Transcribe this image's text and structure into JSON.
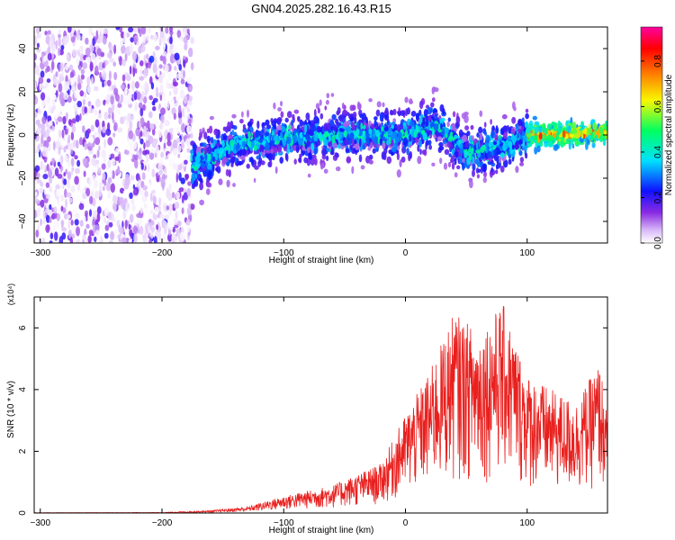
{
  "title": "GN04.2025.282.16.43.R15",
  "chart_data": [
    {
      "type": "heatmap",
      "title": "GN04.2025.282.16.43.R15",
      "xlabel": "Height of straight line (km)",
      "ylabel": "Frequency (Hz)",
      "xlim": [
        -305,
        166
      ],
      "ylim": [
        -50,
        50
      ],
      "x_ticks": [
        -300,
        -200,
        -100,
        0,
        100
      ],
      "y_ticks": [
        -40,
        -20,
        0,
        20,
        40
      ],
      "colorbar": {
        "label": "Normalized spectral amplitude",
        "range": [
          0,
          0.95
        ],
        "ticks": [
          0.0,
          0.2,
          0.4,
          0.6,
          0.8
        ],
        "colormap": [
          "#ffffff",
          "#d8b8f8",
          "#8a2be2",
          "#1010ff",
          "#00e0ff",
          "#00ff60",
          "#f8f800",
          "#ff8000",
          "#ff0000",
          "#ff00a0"
        ]
      },
      "regions": [
        {
          "x_range": [
            -305,
            -175
          ],
          "frequency_spread": [
            -50,
            50
          ],
          "amplitude": [
            0.0,
            0.25
          ],
          "description": "noise"
        },
        {
          "x_range": [
            -175,
            100
          ],
          "frequency_center": [
            [
              -175,
              -14
            ],
            [
              -140,
              -5
            ],
            [
              -100,
              -2
            ],
            [
              -60,
              0
            ],
            [
              0,
              0
            ],
            [
              25,
              5
            ],
            [
              50,
              -8
            ],
            [
              80,
              -5
            ],
            [
              100,
              0
            ]
          ],
          "amplitude": [
            0.1,
            0.5
          ]
        },
        {
          "x_range": [
            100,
            166
          ],
          "frequency_center": [
            [
              100,
              0
            ],
            [
              166,
              1
            ]
          ],
          "amplitude": [
            0.3,
            0.92
          ]
        }
      ]
    },
    {
      "type": "line",
      "xlabel": "Height of straight line (km)",
      "ylabel": "SNR (10 * v/v)",
      "y_multiplier": "(x10⁴)",
      "xlim": [
        -305,
        166
      ],
      "ylim": [
        0,
        7
      ],
      "x_ticks": [
        -300,
        -200,
        -100,
        0,
        100
      ],
      "y_ticks": [
        0,
        2,
        4,
        6
      ],
      "series_color": "#e8201e",
      "envelope": {
        "x": [
          -305,
          -200,
          -160,
          -130,
          -100,
          -60,
          -20,
          0,
          20,
          40,
          60,
          80,
          100,
          120,
          140,
          160,
          166
        ],
        "y_max": [
          0.01,
          0.02,
          0.08,
          0.2,
          0.55,
          0.9,
          1.6,
          3.2,
          4.6,
          6.5,
          5.9,
          6.8,
          4.5,
          4.0,
          3.6,
          4.9,
          3.0
        ]
      }
    }
  ]
}
